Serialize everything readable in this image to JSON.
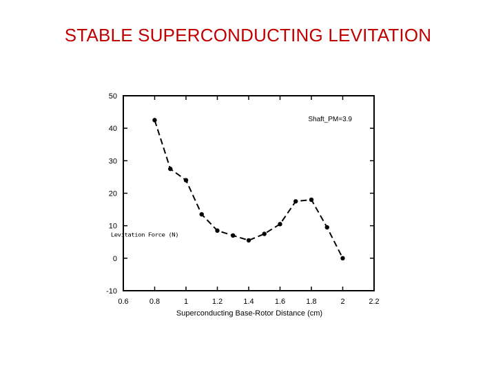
{
  "slide": {
    "title": "STABLE SUPERCONDUCTING LEVITATION",
    "title_color": "#c00000"
  },
  "chart_data": {
    "type": "line",
    "title": "",
    "xlabel": "Superconducting Base-Rotor Distance (cm)",
    "ylabel": "Levitation Force (N)",
    "xlim": [
      0.6,
      2.2
    ],
    "ylim": [
      -10,
      50
    ],
    "xticks": [
      0.6,
      0.8,
      1,
      1.2,
      1.4,
      1.6,
      1.8,
      2,
      2.2
    ],
    "xtick_labels": [
      "0.6",
      "0.8",
      "1",
      "1.2",
      "1.4",
      "1.6",
      "1.8",
      "2",
      "2.2"
    ],
    "yticks": [
      -10,
      0,
      10,
      20,
      30,
      40,
      50
    ],
    "ytick_labels": [
      "-10",
      "0",
      "10",
      "20",
      "30",
      "40",
      "50"
    ],
    "grid": false,
    "series": [
      {
        "name": "Shaft_PM=3.9",
        "line_style": "dashed",
        "marker": "circle",
        "color": "#000000",
        "x": [
          0.8,
          0.9,
          1.0,
          1.1,
          1.2,
          1.3,
          1.4,
          1.5,
          1.6,
          1.7,
          1.8,
          1.9,
          2.0
        ],
        "y": [
          42.5,
          27.5,
          24.0,
          13.5,
          8.5,
          7.0,
          5.5,
          7.5,
          10.5,
          17.5,
          18.0,
          9.5,
          0.0
        ]
      }
    ],
    "annotations": [
      {
        "text": "Shaft_PM=3.9",
        "position": "top-right"
      }
    ]
  }
}
